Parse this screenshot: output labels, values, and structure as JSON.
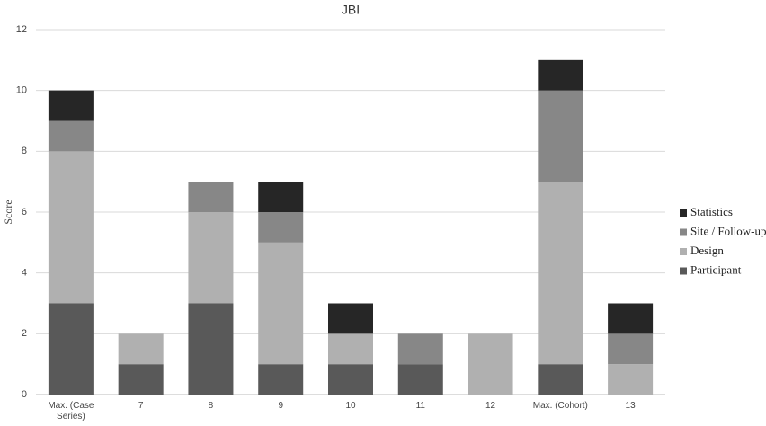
{
  "chart_data": {
    "type": "stacked-bar",
    "title": "JBI",
    "y_label": "Score",
    "categories": [
      "Max. (Case Series)",
      "7",
      "8",
      "9",
      "10",
      "11",
      "12",
      "Max. (Cohort)",
      "13"
    ],
    "series": [
      {
        "name": "Participant",
        "color": "#595959",
        "values": [
          3,
          1,
          3,
          1,
          1,
          1,
          0,
          1,
          0
        ]
      },
      {
        "name": "Design",
        "color": "#b0b0b0",
        "values": [
          5,
          1,
          3,
          4,
          1,
          0,
          2,
          6,
          1
        ]
      },
      {
        "name": "Site / Follow-up",
        "color": "#878787",
        "values": [
          1,
          0,
          1,
          1,
          0,
          1,
          0,
          3,
          1
        ]
      },
      {
        "name": "Statistics",
        "color": "#262626",
        "values": [
          1,
          0,
          0,
          1,
          1,
          0,
          0,
          1,
          1
        ]
      }
    ],
    "ylim": [
      0,
      12
    ],
    "yticks": [
      0,
      2,
      4,
      6,
      8,
      10,
      12
    ],
    "grid": true,
    "legend": "right"
  }
}
